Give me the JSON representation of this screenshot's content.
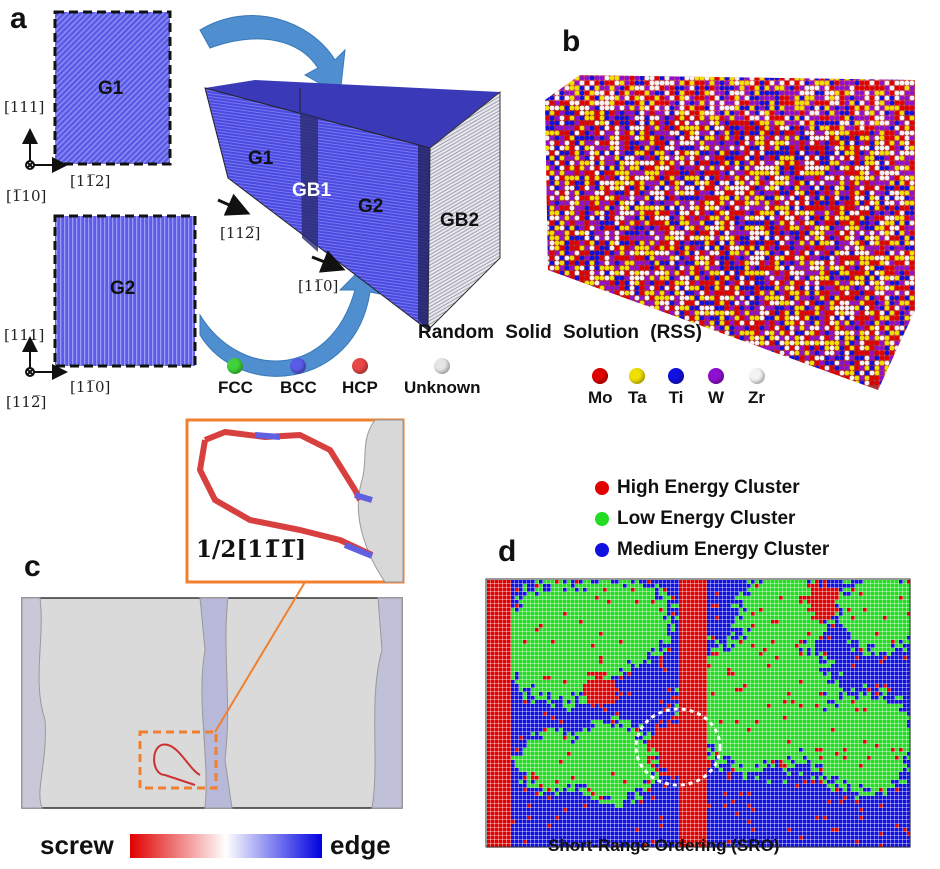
{
  "panel_a": {
    "label": "a",
    "grain1_label": "G1",
    "grain2_label": "G2",
    "box_labels": {
      "g1": "G1",
      "gb1": "GB1",
      "g2": "G2",
      "gb2": "GB2"
    },
    "g1_axes": {
      "up": "[111]",
      "right": "[11̅2]",
      "out": "[1̅10]"
    },
    "g2_axes": {
      "up": "[111]",
      "right": "[11̅0]",
      "out": "[112̅]"
    },
    "box_dir1": "[112̅]",
    "box_dir2": "[11̅0]",
    "legend": [
      {
        "label": "FCC",
        "color": "#3fd23a"
      },
      {
        "label": "BCC",
        "color": "#5b5be8"
      },
      {
        "label": "HCP",
        "color": "#e84848"
      },
      {
        "label": "Unknown",
        "color": "#e6e6e6"
      }
    ]
  },
  "panel_b": {
    "label": "b",
    "caption": "Random Solid Solution (RSS)",
    "legend": [
      {
        "label": "Mo",
        "color": "#e00000"
      },
      {
        "label": "Ta",
        "color": "#f0e000"
      },
      {
        "label": "Ti",
        "color": "#1010e0"
      },
      {
        "label": "W",
        "color": "#9010d0"
      },
      {
        "label": "Zr",
        "color": "#f4f4f4"
      }
    ]
  },
  "panel_c": {
    "label": "c",
    "burgers_vector": "1/2[11̅1̅]",
    "colorbar_left": "screw",
    "colorbar_right": "edge",
    "colorbar_colors": [
      "#e00000",
      "#ffffff",
      "#0000e0"
    ]
  },
  "panel_d": {
    "label": "d",
    "caption": "Short-Range Ordering (SRO)",
    "legend": [
      {
        "label": "High Energy Cluster",
        "color": "#e00000"
      },
      {
        "label": "Low Energy Cluster",
        "color": "#22dd22"
      },
      {
        "label": "Medium Energy Cluster",
        "color": "#1010e0"
      }
    ]
  }
}
